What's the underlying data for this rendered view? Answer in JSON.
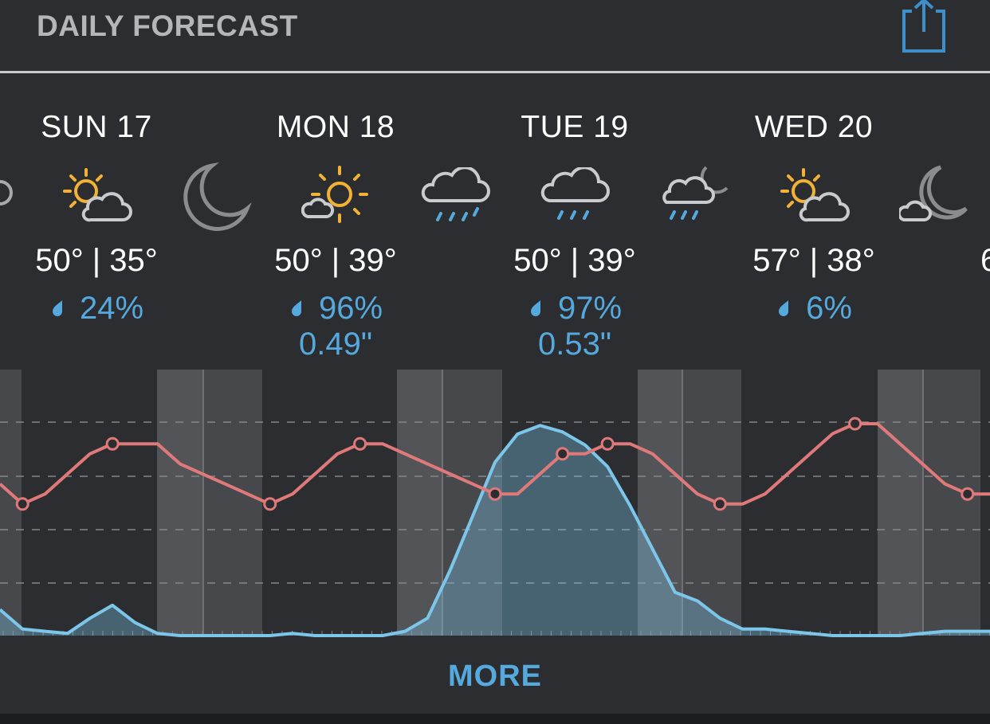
{
  "header": {
    "title": "DAILY FORECAST",
    "share_icon": "share-icon"
  },
  "days": [
    {
      "label": "SUN 17",
      "day_icon": "partly-sunny-icon",
      "temps": "50° | 35°",
      "precip": "24%",
      "amount": ""
    },
    {
      "label": "MON 18",
      "day_icon": "sunny-icon",
      "temps": "50° | 39°",
      "precip": "96%",
      "amount": "0.49\""
    },
    {
      "label": "TUE 19",
      "day_icon": "rain-icon",
      "temps": "50° | 39°",
      "precip": "97%",
      "amount": "0.53\""
    },
    {
      "label": "WED 20",
      "day_icon": "partly-sunny-icon",
      "temps": "57° | 38°",
      "precip": "6%",
      "amount": ""
    }
  ],
  "night_icons": [
    "moon-icon",
    "rain-icon",
    "night-rain-icon",
    "partly-cloudy-night-icon"
  ],
  "partial_next_temp": "6",
  "colors": {
    "background": "#2c2d30",
    "accent": "#55a9dd",
    "temperature_line": "#e07a7a",
    "precip_line": "#7cc6ea",
    "night_band": "#47484c"
  },
  "chart_data": {
    "type": "line",
    "series": [
      {
        "key": "temperature",
        "values": [
          48,
          46,
          47,
          49,
          51,
          52,
          52,
          52,
          50,
          49,
          48,
          47,
          46,
          47,
          49,
          51,
          52,
          52,
          51,
          50,
          49,
          48,
          47,
          47,
          49,
          51,
          51,
          52,
          52,
          51,
          49,
          47,
          46,
          46,
          47,
          49,
          51,
          53,
          54,
          54,
          52,
          50,
          48,
          47,
          47
        ]
      },
      {
        "key": "precipitation_probability",
        "values": [
          12,
          3,
          2,
          1,
          8,
          14,
          6,
          1,
          0,
          0,
          0,
          0,
          0,
          1,
          0,
          0,
          0,
          0,
          2,
          8,
          30,
          55,
          80,
          93,
          97,
          94,
          88,
          78,
          60,
          40,
          20,
          16,
          8,
          3,
          3,
          2,
          1,
          0,
          0,
          0,
          0,
          1,
          2,
          2,
          2
        ]
      }
    ],
    "grid": true
  },
  "more": {
    "label": "MORE"
  }
}
